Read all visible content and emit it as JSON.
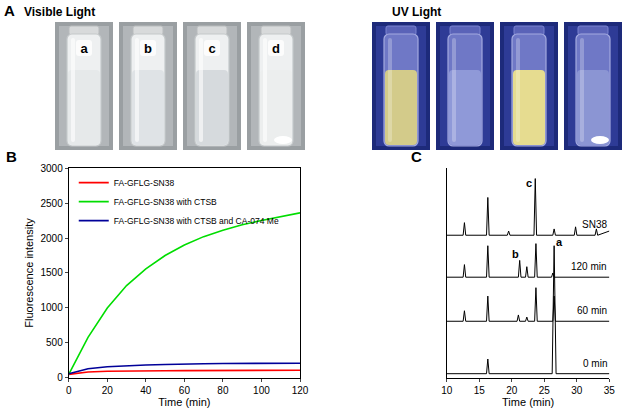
{
  "panel_a": {
    "title": "A",
    "groups": [
      {
        "title": "Visible Light",
        "vials": [
          "a",
          "b",
          "c",
          "d"
        ]
      },
      {
        "title": "UV Light",
        "vials": []
      }
    ]
  },
  "chart_data": [
    {
      "type": "line",
      "title": "B",
      "x_label": "Time (min)",
      "y_label": "Fluorescence intensity",
      "x": [
        0,
        10,
        20,
        30,
        40,
        50,
        60,
        70,
        80,
        90,
        100,
        110,
        120
      ],
      "series": [
        {
          "name": "FA-GFLG-SN38",
          "color": "#ff0000",
          "values": [
            50,
            85,
            95,
            100,
            100,
            102,
            104,
            105,
            106,
            107,
            108,
            109,
            110
          ]
        },
        {
          "name": "FA-GFLG-SN38 with CTSB",
          "color": "#00dd00",
          "values": [
            50,
            580,
            1000,
            1320,
            1560,
            1750,
            1900,
            2020,
            2110,
            2190,
            2250,
            2310,
            2360
          ]
        },
        {
          "name": "FA-GFLG-SN38 with CTSB and CA-074 Me",
          "color": "#000099",
          "values": [
            60,
            130,
            160,
            175,
            185,
            192,
            200,
            203,
            205,
            207,
            208,
            209,
            210
          ]
        }
      ],
      "xlim": [
        0,
        120
      ],
      "ylim": [
        0,
        3000
      ],
      "xticks": [
        0,
        20,
        40,
        60,
        80,
        100,
        120
      ],
      "yticks": [
        0,
        500,
        1000,
        1500,
        2000,
        2500,
        3000
      ],
      "legend": "top left",
      "grid": false
    },
    {
      "type": "line",
      "title": "C",
      "x_label": "Time (min)",
      "series": [
        {
          "name": "SN38",
          "color": "#000000",
          "x": [
            10,
            12.5,
            12.7,
            12.9,
            16.1,
            16.3,
            16.5,
            19.3,
            19.5,
            19.7,
            23.4,
            23.6,
            23.8,
            26.3,
            26.5,
            26.7,
            29.6,
            29.8,
            30.0,
            32.8,
            33.0,
            33.2,
            35
          ],
          "values": [
            68,
            68,
            74,
            68,
            68,
            86,
            68,
            68,
            70,
            68,
            68,
            95,
            68,
            68,
            71,
            68,
            68,
            72,
            68,
            68,
            71,
            68,
            70
          ]
        },
        {
          "name": "120 min",
          "color": "#000000",
          "x": [
            10,
            12.5,
            12.7,
            12.9,
            16.1,
            16.3,
            16.5,
            21.0,
            21.2,
            21.4,
            22.1,
            22.3,
            22.5,
            23.5,
            23.7,
            23.9,
            26.1,
            26.3,
            26.5,
            35
          ],
          "values": [
            48,
            48,
            54,
            48,
            48,
            63,
            48,
            48,
            56,
            48,
            48,
            53,
            48,
            48,
            64,
            48,
            48,
            50,
            48,
            48
          ]
        },
        {
          "name": "60 min",
          "color": "#000000",
          "x": [
            10,
            12.5,
            12.7,
            12.9,
            16.1,
            16.3,
            16.5,
            20.8,
            21.0,
            21.2,
            22.1,
            22.3,
            22.5,
            23.5,
            23.7,
            23.9,
            26.3,
            26.5,
            26.7,
            35
          ],
          "values": [
            27,
            27,
            32,
            27,
            27,
            39,
            27,
            27,
            30,
            27,
            27,
            29,
            27,
            27,
            43,
            27,
            27,
            39,
            27,
            27
          ]
        },
        {
          "name": "0 min",
          "color": "#000000",
          "x": [
            10,
            16.1,
            16.3,
            16.5,
            26.2,
            26.5,
            26.8,
            35
          ],
          "values": [
            2,
            2,
            9,
            2,
            2,
            63,
            2,
            2
          ]
        }
      ],
      "annotations": [
        {
          "text": "a",
          "x": 27.3,
          "y": 65
        },
        {
          "text": "b",
          "x": 20.6,
          "y": 59
        },
        {
          "text": "c",
          "x": 22.7,
          "y": 93
        }
      ],
      "xlim": [
        10,
        35
      ],
      "ylim": [
        0,
        100
      ],
      "xticks": [
        10,
        15,
        20,
        25,
        30,
        35
      ],
      "yticks": [],
      "tick_labels": "x",
      "grid": false
    }
  ]
}
